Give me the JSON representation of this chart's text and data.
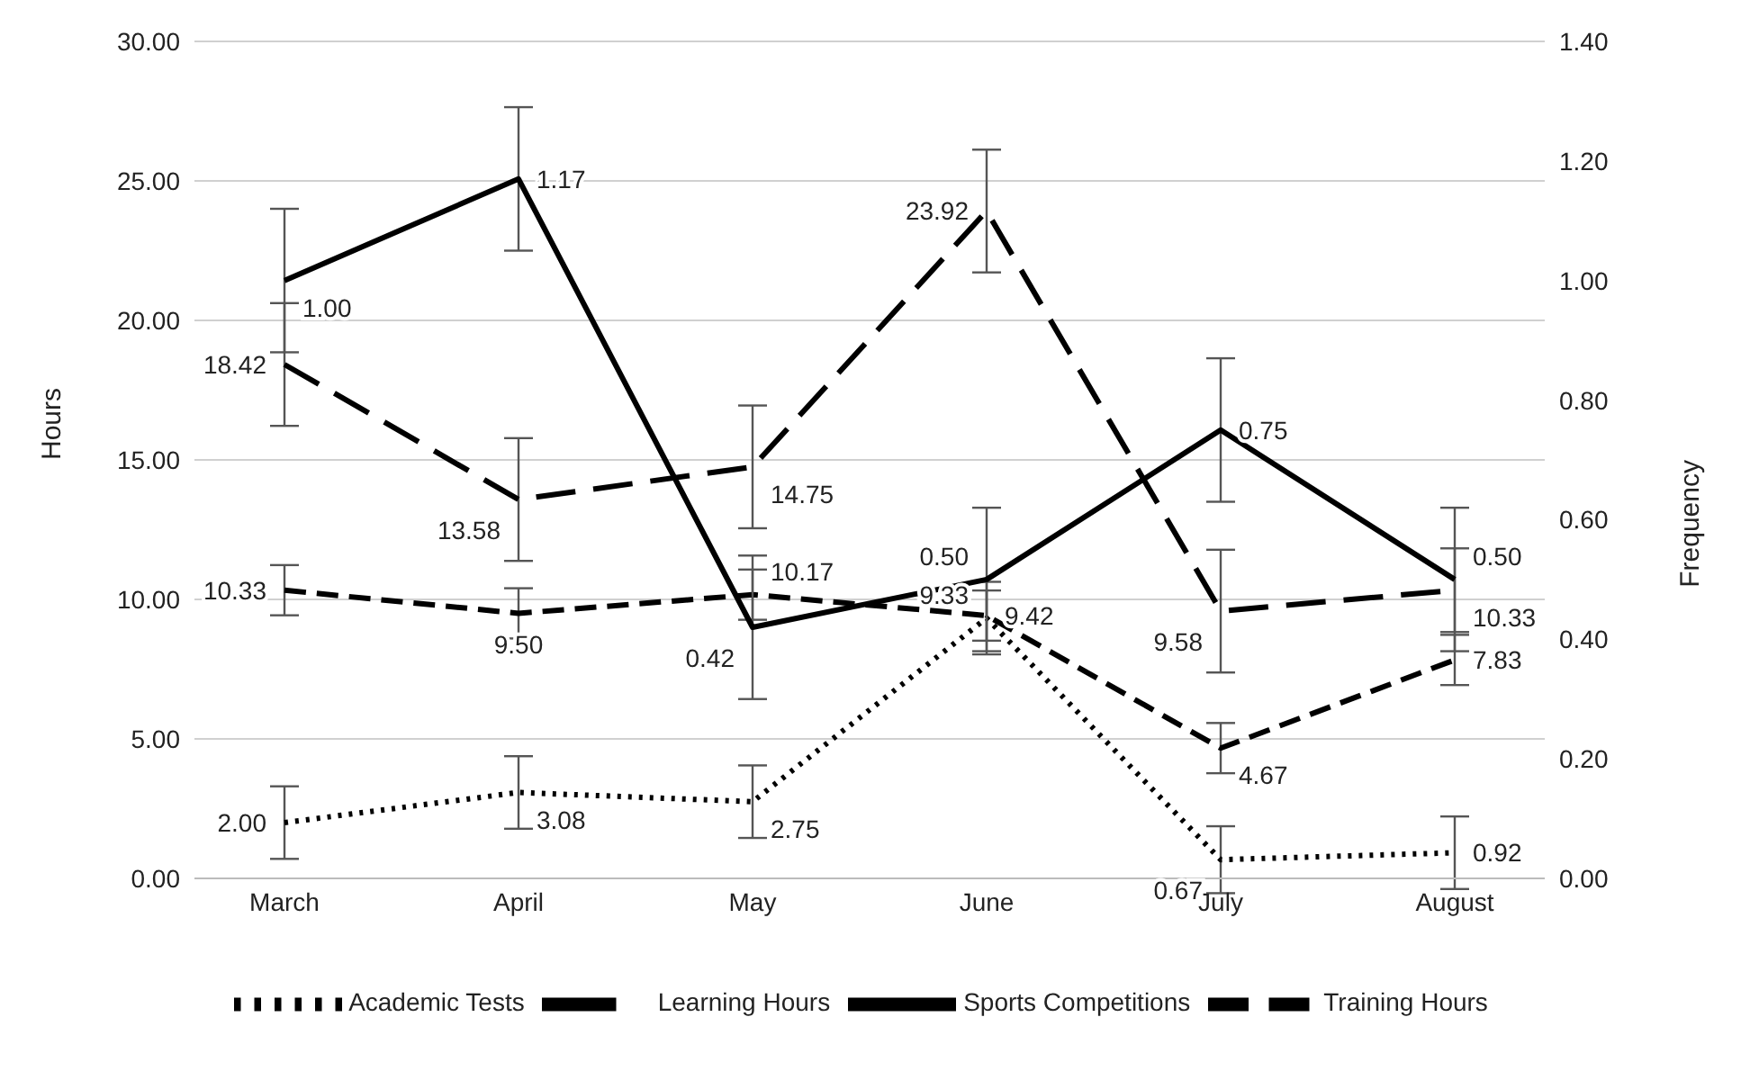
{
  "chart_data": {
    "type": "line",
    "xlabel": null,
    "ylabel": "Hours",
    "y2label": "Frequency",
    "categories": [
      "March",
      "April",
      "May",
      "June",
      "July",
      "August"
    ],
    "series": [
      {
        "name": "Academic Tests",
        "color": "#000000",
        "line_style": "dotted",
        "values": [
          2.0,
          3.08,
          2.75,
          9.33,
          0.67,
          0.92
        ],
        "errors": [
          1.3,
          1.3,
          1.3,
          1.3,
          1.2,
          1.3
        ],
        "value_labels": [
          "2.00",
          "3.08",
          "2.75",
          "9.33",
          "0.67",
          "0.92"
        ]
      },
      {
        "name": "Learning Hours",
        "color": "#000000",
        "line_style": "dashed",
        "values": [
          18.42,
          13.58,
          14.75,
          23.92,
          9.58,
          10.33
        ],
        "errors": [
          2.2,
          2.2,
          2.2,
          2.2,
          2.2,
          1.5
        ],
        "value_labels": [
          "18.42",
          "13.58",
          "14.75",
          "23.92",
          "9.58",
          "10.33"
        ]
      },
      {
        "name": "Training Hours",
        "color": "#000000",
        "line_style": "dashed",
        "values": [
          10.33,
          9.5,
          10.17,
          9.42,
          4.67,
          7.83
        ],
        "errors": [
          0.9,
          0.9,
          0.9,
          0.9,
          0.9,
          0.9
        ],
        "value_labels": [
          "10.33",
          "9.50",
          "10.17",
          "9.42",
          "4.67",
          "7.83"
        ]
      },
      {
        "name": "Sports Competitions",
        "color": "#000000",
        "line_style": "solid",
        "axis": "y2",
        "values": [
          1.0,
          1.17,
          0.42,
          0.5,
          0.75,
          0.5
        ],
        "errors": [
          0.12,
          0.12,
          0.12,
          0.12,
          0.12,
          0.12
        ],
        "value_labels": [
          "1.00",
          "1.17",
          "0.42",
          "0.50",
          "0.75",
          "0.50"
        ]
      }
    ],
    "ylim": [
      0,
      30
    ],
    "yticks": [
      {
        "value": 0,
        "label": "0.00"
      },
      {
        "value": 5,
        "label": "5.00"
      },
      {
        "value": 10,
        "label": "10.00"
      },
      {
        "value": 15,
        "label": "15.00"
      },
      {
        "value": 20,
        "label": "20.00"
      },
      {
        "value": 25,
        "label": "25.00"
      },
      {
        "value": 30,
        "label": "30.00"
      }
    ],
    "y2lim": [
      0,
      1.4
    ],
    "y2ticks": [
      {
        "value": 0,
        "label": "0.00"
      },
      {
        "value": 0.2,
        "label": "0.20"
      },
      {
        "value": 0.4,
        "label": "0.40"
      },
      {
        "value": 0.6,
        "label": "0.60"
      },
      {
        "value": 0.8,
        "label": "0.80"
      },
      {
        "value": 1,
        "label": "1.00"
      },
      {
        "value": 1.2,
        "label": "1.20"
      },
      {
        "value": 1.4,
        "label": "1.40"
      }
    ],
    "grid": "y",
    "legend": "bottom",
    "marker": "none"
  }
}
